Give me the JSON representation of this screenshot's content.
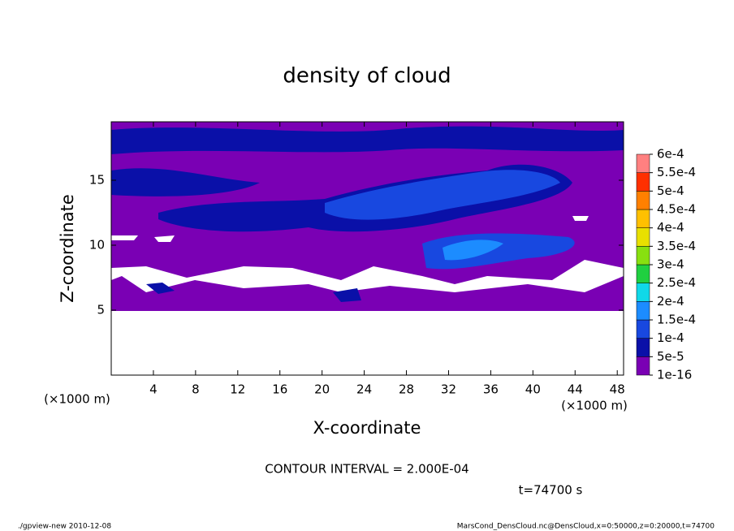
{
  "chart_data": {
    "type": "contour",
    "title": "density of cloud",
    "xlabel": "X-coordinate",
    "ylabel": "Z-coordinate",
    "x_unit_left": "(×1000 m)",
    "x_unit_right": "(×1000 m)",
    "xlim": [
      0,
      48.6
    ],
    "ylim": [
      0,
      19.5
    ],
    "xticks": [
      4,
      8,
      12,
      16,
      20,
      24,
      28,
      32,
      36,
      40,
      44,
      48
    ],
    "yticks": [
      5,
      10,
      15
    ],
    "colorbar": {
      "ticks": [
        {
          "value": 1e-16,
          "label": "1e-16"
        },
        {
          "value": 5e-05,
          "label": "5e-5"
        },
        {
          "value": 0.0001,
          "label": "1e-4"
        },
        {
          "value": 0.00015,
          "label": "1.5e-4"
        },
        {
          "value": 0.0002,
          "label": "2e-4"
        },
        {
          "value": 0.00025,
          "label": "2.5e-4"
        },
        {
          "value": 0.0003,
          "label": "3e-4"
        },
        {
          "value": 0.00035,
          "label": "3.5e-4"
        },
        {
          "value": 0.0004,
          "label": "4e-4"
        },
        {
          "value": 0.00045,
          "label": "4.5e-4"
        },
        {
          "value": 0.0005,
          "label": "5e-4"
        },
        {
          "value": 0.00055,
          "label": "5.5e-4"
        },
        {
          "value": 0.0006,
          "label": "6e-4"
        }
      ],
      "colors": [
        "#7a00b4",
        "#0a10a8",
        "#1848e0",
        "#1c8cff",
        "#10d8e8",
        "#20d040",
        "#88e010",
        "#e8e000",
        "#ffc000",
        "#ff8000",
        "#ff3000",
        "#ff8080"
      ]
    },
    "contour_interval": "CONTOUR INTERVAL = 2.000E-04",
    "time": "t=74700 s",
    "footer_left": "./gpview-new  2010-12-08",
    "footer_right": "MarsCond_DensCloud.nc@DensCloud,x=0:50000,z=0:20000,t=74700"
  }
}
